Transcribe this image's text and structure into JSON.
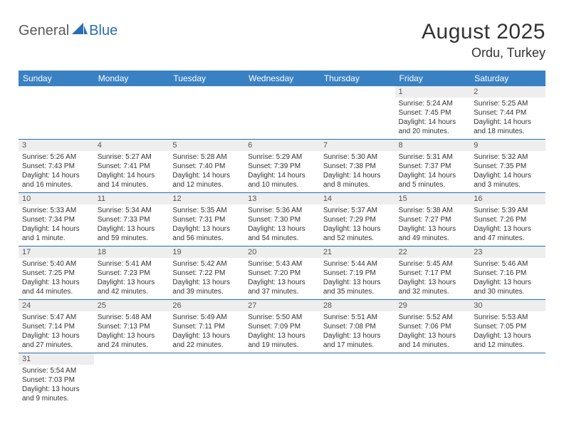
{
  "logo": {
    "part1": "General",
    "part2": "Blue"
  },
  "title": "August 2025",
  "location": "Ordu, Turkey",
  "colors": {
    "header_bg": "#3a81c4",
    "header_text": "#ffffff",
    "daynum_bg": "#eeeeee",
    "row_border": "#2a6db3",
    "logo_accent": "#2a6db3",
    "logo_text": "#5a5a5a"
  },
  "weekdays": [
    "Sunday",
    "Monday",
    "Tuesday",
    "Wednesday",
    "Thursday",
    "Friday",
    "Saturday"
  ],
  "weeks": [
    [
      null,
      null,
      null,
      null,
      null,
      {
        "day": "1",
        "sunrise": "Sunrise: 5:24 AM",
        "sunset": "Sunset: 7:45 PM",
        "daylight1": "Daylight: 14 hours",
        "daylight2": "and 20 minutes."
      },
      {
        "day": "2",
        "sunrise": "Sunrise: 5:25 AM",
        "sunset": "Sunset: 7:44 PM",
        "daylight1": "Daylight: 14 hours",
        "daylight2": "and 18 minutes."
      }
    ],
    [
      {
        "day": "3",
        "sunrise": "Sunrise: 5:26 AM",
        "sunset": "Sunset: 7:43 PM",
        "daylight1": "Daylight: 14 hours",
        "daylight2": "and 16 minutes."
      },
      {
        "day": "4",
        "sunrise": "Sunrise: 5:27 AM",
        "sunset": "Sunset: 7:41 PM",
        "daylight1": "Daylight: 14 hours",
        "daylight2": "and 14 minutes."
      },
      {
        "day": "5",
        "sunrise": "Sunrise: 5:28 AM",
        "sunset": "Sunset: 7:40 PM",
        "daylight1": "Daylight: 14 hours",
        "daylight2": "and 12 minutes."
      },
      {
        "day": "6",
        "sunrise": "Sunrise: 5:29 AM",
        "sunset": "Sunset: 7:39 PM",
        "daylight1": "Daylight: 14 hours",
        "daylight2": "and 10 minutes."
      },
      {
        "day": "7",
        "sunrise": "Sunrise: 5:30 AM",
        "sunset": "Sunset: 7:38 PM",
        "daylight1": "Daylight: 14 hours",
        "daylight2": "and 8 minutes."
      },
      {
        "day": "8",
        "sunrise": "Sunrise: 5:31 AM",
        "sunset": "Sunset: 7:37 PM",
        "daylight1": "Daylight: 14 hours",
        "daylight2": "and 5 minutes."
      },
      {
        "day": "9",
        "sunrise": "Sunrise: 5:32 AM",
        "sunset": "Sunset: 7:35 PM",
        "daylight1": "Daylight: 14 hours",
        "daylight2": "and 3 minutes."
      }
    ],
    [
      {
        "day": "10",
        "sunrise": "Sunrise: 5:33 AM",
        "sunset": "Sunset: 7:34 PM",
        "daylight1": "Daylight: 14 hours",
        "daylight2": "and 1 minute."
      },
      {
        "day": "11",
        "sunrise": "Sunrise: 5:34 AM",
        "sunset": "Sunset: 7:33 PM",
        "daylight1": "Daylight: 13 hours",
        "daylight2": "and 59 minutes."
      },
      {
        "day": "12",
        "sunrise": "Sunrise: 5:35 AM",
        "sunset": "Sunset: 7:31 PM",
        "daylight1": "Daylight: 13 hours",
        "daylight2": "and 56 minutes."
      },
      {
        "day": "13",
        "sunrise": "Sunrise: 5:36 AM",
        "sunset": "Sunset: 7:30 PM",
        "daylight1": "Daylight: 13 hours",
        "daylight2": "and 54 minutes."
      },
      {
        "day": "14",
        "sunrise": "Sunrise: 5:37 AM",
        "sunset": "Sunset: 7:29 PM",
        "daylight1": "Daylight: 13 hours",
        "daylight2": "and 52 minutes."
      },
      {
        "day": "15",
        "sunrise": "Sunrise: 5:38 AM",
        "sunset": "Sunset: 7:27 PM",
        "daylight1": "Daylight: 13 hours",
        "daylight2": "and 49 minutes."
      },
      {
        "day": "16",
        "sunrise": "Sunrise: 5:39 AM",
        "sunset": "Sunset: 7:26 PM",
        "daylight1": "Daylight: 13 hours",
        "daylight2": "and 47 minutes."
      }
    ],
    [
      {
        "day": "17",
        "sunrise": "Sunrise: 5:40 AM",
        "sunset": "Sunset: 7:25 PM",
        "daylight1": "Daylight: 13 hours",
        "daylight2": "and 44 minutes."
      },
      {
        "day": "18",
        "sunrise": "Sunrise: 5:41 AM",
        "sunset": "Sunset: 7:23 PM",
        "daylight1": "Daylight: 13 hours",
        "daylight2": "and 42 minutes."
      },
      {
        "day": "19",
        "sunrise": "Sunrise: 5:42 AM",
        "sunset": "Sunset: 7:22 PM",
        "daylight1": "Daylight: 13 hours",
        "daylight2": "and 39 minutes."
      },
      {
        "day": "20",
        "sunrise": "Sunrise: 5:43 AM",
        "sunset": "Sunset: 7:20 PM",
        "daylight1": "Daylight: 13 hours",
        "daylight2": "and 37 minutes."
      },
      {
        "day": "21",
        "sunrise": "Sunrise: 5:44 AM",
        "sunset": "Sunset: 7:19 PM",
        "daylight1": "Daylight: 13 hours",
        "daylight2": "and 35 minutes."
      },
      {
        "day": "22",
        "sunrise": "Sunrise: 5:45 AM",
        "sunset": "Sunset: 7:17 PM",
        "daylight1": "Daylight: 13 hours",
        "daylight2": "and 32 minutes."
      },
      {
        "day": "23",
        "sunrise": "Sunrise: 5:46 AM",
        "sunset": "Sunset: 7:16 PM",
        "daylight1": "Daylight: 13 hours",
        "daylight2": "and 30 minutes."
      }
    ],
    [
      {
        "day": "24",
        "sunrise": "Sunrise: 5:47 AM",
        "sunset": "Sunset: 7:14 PM",
        "daylight1": "Daylight: 13 hours",
        "daylight2": "and 27 minutes."
      },
      {
        "day": "25",
        "sunrise": "Sunrise: 5:48 AM",
        "sunset": "Sunset: 7:13 PM",
        "daylight1": "Daylight: 13 hours",
        "daylight2": "and 24 minutes."
      },
      {
        "day": "26",
        "sunrise": "Sunrise: 5:49 AM",
        "sunset": "Sunset: 7:11 PM",
        "daylight1": "Daylight: 13 hours",
        "daylight2": "and 22 minutes."
      },
      {
        "day": "27",
        "sunrise": "Sunrise: 5:50 AM",
        "sunset": "Sunset: 7:09 PM",
        "daylight1": "Daylight: 13 hours",
        "daylight2": "and 19 minutes."
      },
      {
        "day": "28",
        "sunrise": "Sunrise: 5:51 AM",
        "sunset": "Sunset: 7:08 PM",
        "daylight1": "Daylight: 13 hours",
        "daylight2": "and 17 minutes."
      },
      {
        "day": "29",
        "sunrise": "Sunrise: 5:52 AM",
        "sunset": "Sunset: 7:06 PM",
        "daylight1": "Daylight: 13 hours",
        "daylight2": "and 14 minutes."
      },
      {
        "day": "30",
        "sunrise": "Sunrise: 5:53 AM",
        "sunset": "Sunset: 7:05 PM",
        "daylight1": "Daylight: 13 hours",
        "daylight2": "and 12 minutes."
      }
    ],
    [
      {
        "day": "31",
        "sunrise": "Sunrise: 5:54 AM",
        "sunset": "Sunset: 7:03 PM",
        "daylight1": "Daylight: 13 hours",
        "daylight2": "and 9 minutes."
      },
      null,
      null,
      null,
      null,
      null,
      null
    ]
  ]
}
